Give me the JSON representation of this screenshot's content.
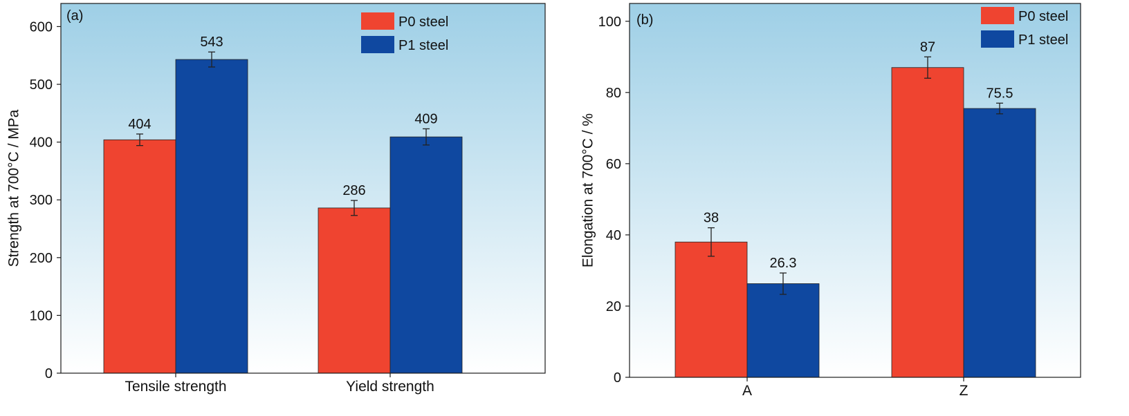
{
  "figure": {
    "colors": {
      "p0": "#EF4430",
      "p1": "#0F48A0",
      "bg_top": "#9ECFE6",
      "bg_bottom": "#FFFFFF",
      "axis": "#1a1a1a"
    }
  },
  "chart_data": [
    {
      "panel_label": "(a)",
      "type": "bar",
      "title": "",
      "xlabel": "",
      "ylabel": "Strength at 700°C / MPa",
      "categories": [
        "Tensile strength",
        "Yield strength"
      ],
      "ylim": [
        0,
        640
      ],
      "yticks": [
        0,
        100,
        200,
        300,
        400,
        500,
        600
      ],
      "legend_position": "top-right",
      "grid": false,
      "series": [
        {
          "name": "P0 steel",
          "values": [
            404,
            286
          ],
          "errors": [
            10,
            13
          ],
          "labels": [
            "404",
            "286"
          ]
        },
        {
          "name": "P1 steel",
          "values": [
            543,
            409
          ],
          "errors": [
            13,
            14
          ],
          "labels": [
            "543",
            "409"
          ]
        }
      ]
    },
    {
      "panel_label": "(b)",
      "type": "bar",
      "title": "",
      "xlabel": "",
      "ylabel": "Elongation at 700°C / %",
      "categories": [
        "A",
        "Z"
      ],
      "ylim": [
        0,
        105
      ],
      "yticks": [
        0,
        20,
        40,
        60,
        80,
        100
      ],
      "legend_position": "top-right",
      "grid": false,
      "series": [
        {
          "name": "P0 steel",
          "values": [
            38,
            87
          ],
          "errors": [
            4,
            3
          ],
          "labels": [
            "38",
            "87"
          ]
        },
        {
          "name": "P1 steel",
          "values": [
            26.3,
            75.5
          ],
          "errors": [
            3,
            1.5
          ],
          "labels": [
            "26.3",
            "75.5"
          ]
        }
      ]
    }
  ]
}
